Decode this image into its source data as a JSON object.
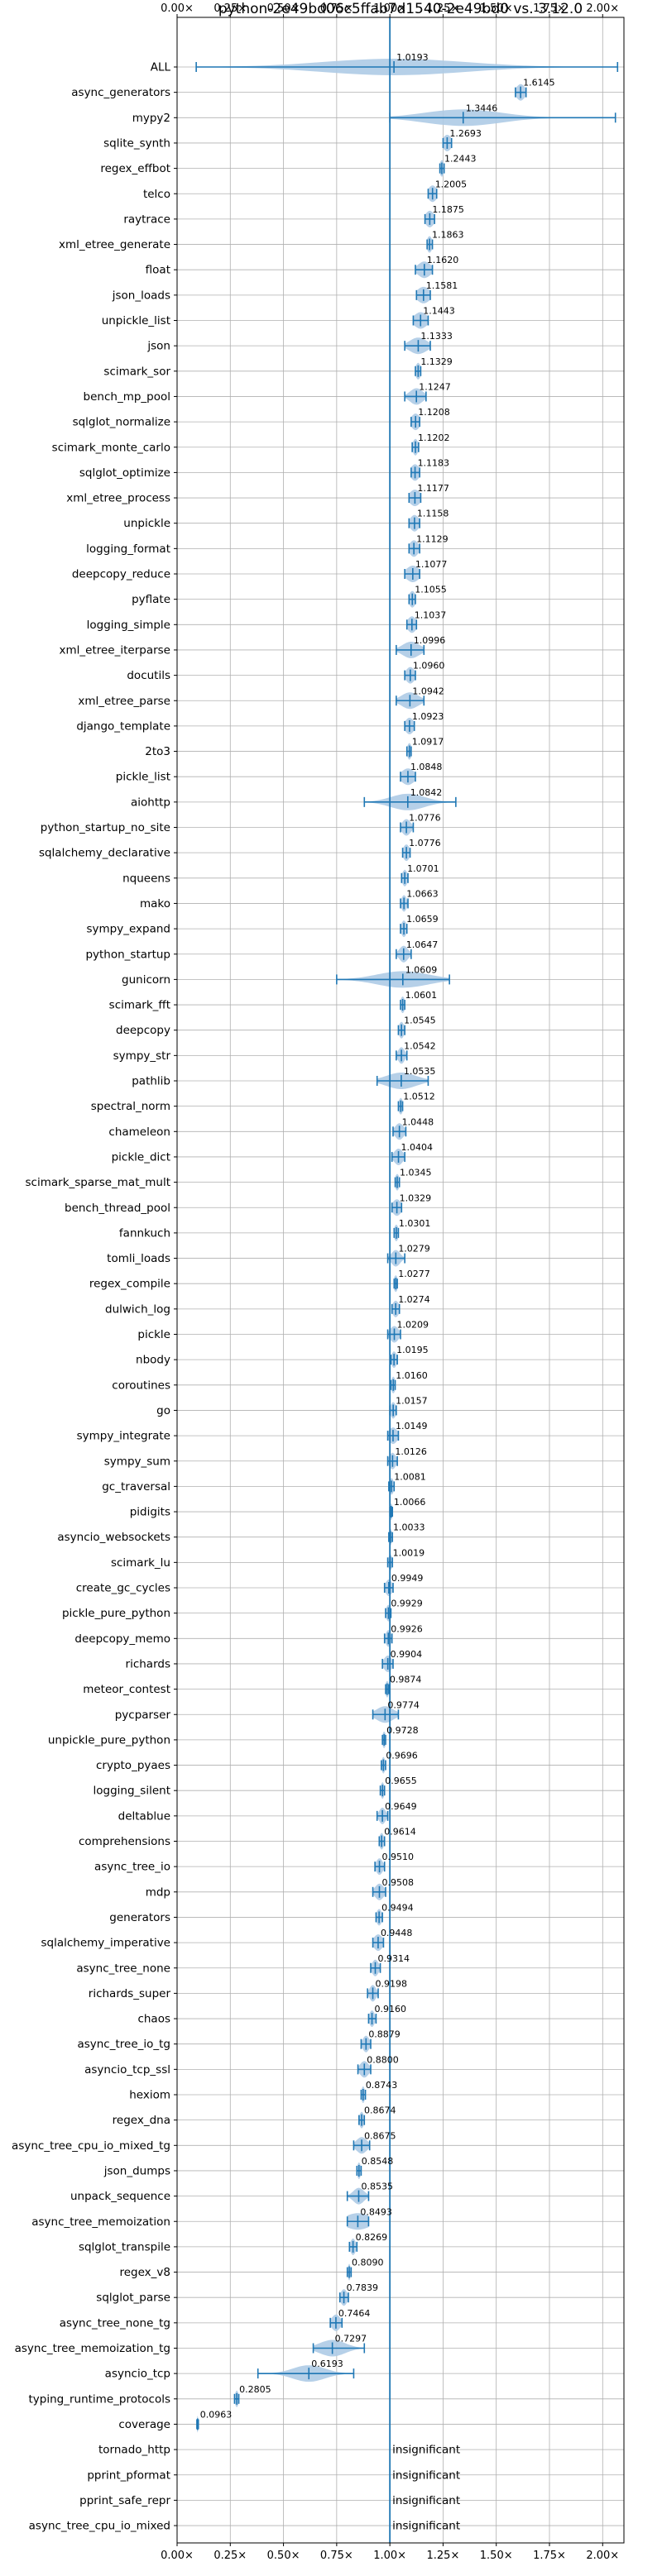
{
  "chart_data": {
    "type": "violin",
    "title": "python-2e49bd06c5ffab7d1540-2e49bd0 vs. 3.12.0",
    "xlabel": "",
    "ylabel": "",
    "xlim": [
      0.0,
      2.1
    ],
    "x_ticks": [
      0.0,
      0.25,
      0.5,
      0.75,
      1.0,
      1.25,
      1.5,
      1.75,
      2.0
    ],
    "x_tick_labels": [
      "0.00×",
      "0.25×",
      "0.50×",
      "0.75×",
      "1.00×",
      "1.25×",
      "1.50×",
      "1.75×",
      "2.00×"
    ],
    "grid": true,
    "reference_line": 1.0,
    "colors": {
      "violin_fill": "#aecbe6",
      "stroke": "#1f77b4",
      "grid": "#b0b0b0"
    },
    "insignificant_label": "insignificant",
    "benchmarks": [
      {
        "name": "ALL",
        "value": 1.0193,
        "label": "1.0193",
        "min": 0.09,
        "max": 2.07,
        "spread": 0.05
      },
      {
        "name": "async_generators",
        "value": 1.6145,
        "label": "1.6145",
        "min": 1.59,
        "max": 1.64,
        "spread": 0.02
      },
      {
        "name": "mypy2",
        "value": 1.3446,
        "label": "1.3446",
        "min": 1.0,
        "max": 2.06,
        "spread": 0.1
      },
      {
        "name": "sqlite_synth",
        "value": 1.2693,
        "label": "1.2693",
        "min": 1.25,
        "max": 1.29,
        "spread": 0.02
      },
      {
        "name": "regex_effbot",
        "value": 1.2443,
        "label": "1.2443",
        "min": 1.235,
        "max": 1.255,
        "spread": 0.01
      },
      {
        "name": "telco",
        "value": 1.2005,
        "label": "1.2005",
        "min": 1.18,
        "max": 1.22,
        "spread": 0.02
      },
      {
        "name": "raytrace",
        "value": 1.1875,
        "label": "1.1875",
        "min": 1.165,
        "max": 1.21,
        "spread": 0.02
      },
      {
        "name": "xml_etree_generate",
        "value": 1.1863,
        "label": "1.1863",
        "min": 1.175,
        "max": 1.2,
        "spread": 0.012
      },
      {
        "name": "float",
        "value": 1.162,
        "label": "1.1620",
        "min": 1.12,
        "max": 1.2,
        "spread": 0.03
      },
      {
        "name": "json_loads",
        "value": 1.1581,
        "label": "1.1581",
        "min": 1.125,
        "max": 1.19,
        "spread": 0.03
      },
      {
        "name": "unpickle_list",
        "value": 1.1443,
        "label": "1.1443",
        "min": 1.11,
        "max": 1.18,
        "spread": 0.03
      },
      {
        "name": "json",
        "value": 1.1333,
        "label": "1.1333",
        "min": 1.07,
        "max": 1.19,
        "spread": 0.04
      },
      {
        "name": "scimark_sor",
        "value": 1.1329,
        "label": "1.1329",
        "min": 1.12,
        "max": 1.145,
        "spread": 0.012
      },
      {
        "name": "bench_mp_pool",
        "value": 1.1247,
        "label": "1.1247",
        "min": 1.07,
        "max": 1.17,
        "spread": 0.03
      },
      {
        "name": "sqlglot_normalize",
        "value": 1.1208,
        "label": "1.1208",
        "min": 1.1,
        "max": 1.14,
        "spread": 0.02
      },
      {
        "name": "scimark_monte_carlo",
        "value": 1.1202,
        "label": "1.1202",
        "min": 1.105,
        "max": 1.135,
        "spread": 0.012
      },
      {
        "name": "sqlglot_optimize",
        "value": 1.1183,
        "label": "1.1183",
        "min": 1.1,
        "max": 1.14,
        "spread": 0.02
      },
      {
        "name": "xml_etree_process",
        "value": 1.1177,
        "label": "1.1177",
        "min": 1.09,
        "max": 1.145,
        "spread": 0.025
      },
      {
        "name": "unpickle",
        "value": 1.1158,
        "label": "1.1158",
        "min": 1.09,
        "max": 1.14,
        "spread": 0.02
      },
      {
        "name": "logging_format",
        "value": 1.1129,
        "label": "1.1129",
        "min": 1.09,
        "max": 1.14,
        "spread": 0.02
      },
      {
        "name": "deepcopy_reduce",
        "value": 1.1077,
        "label": "1.1077",
        "min": 1.07,
        "max": 1.14,
        "spread": 0.03
      },
      {
        "name": "pyflate",
        "value": 1.1055,
        "label": "1.1055",
        "min": 1.09,
        "max": 1.12,
        "spread": 0.015
      },
      {
        "name": "logging_simple",
        "value": 1.1037,
        "label": "1.1037",
        "min": 1.08,
        "max": 1.125,
        "spread": 0.02
      },
      {
        "name": "xml_etree_iterparse",
        "value": 1.0996,
        "label": "1.0996",
        "min": 1.03,
        "max": 1.16,
        "spread": 0.04
      },
      {
        "name": "docutils",
        "value": 1.096,
        "label": "1.0960",
        "min": 1.07,
        "max": 1.12,
        "spread": 0.02
      },
      {
        "name": "xml_etree_parse",
        "value": 1.0942,
        "label": "1.0942",
        "min": 1.03,
        "max": 1.16,
        "spread": 0.04
      },
      {
        "name": "django_template",
        "value": 1.0923,
        "label": "1.0923",
        "min": 1.07,
        "max": 1.115,
        "spread": 0.02
      },
      {
        "name": "2to3",
        "value": 1.0917,
        "label": "1.0917",
        "min": 1.08,
        "max": 1.1,
        "spread": 0.01
      },
      {
        "name": "pickle_list",
        "value": 1.0848,
        "label": "1.0848",
        "min": 1.05,
        "max": 1.12,
        "spread": 0.03
      },
      {
        "name": "aiohttp",
        "value": 1.0842,
        "label": "1.0842",
        "min": 0.88,
        "max": 1.31,
        "spread": 0.08
      },
      {
        "name": "python_startup_no_site",
        "value": 1.0776,
        "label": "1.0776",
        "min": 1.05,
        "max": 1.11,
        "spread": 0.02
      },
      {
        "name": "sqlalchemy_declarative",
        "value": 1.0776,
        "label": "1.0776",
        "min": 1.06,
        "max": 1.095,
        "spread": 0.015
      },
      {
        "name": "nqueens",
        "value": 1.0701,
        "label": "1.0701",
        "min": 1.055,
        "max": 1.085,
        "spread": 0.012
      },
      {
        "name": "mako",
        "value": 1.0663,
        "label": "1.0663",
        "min": 1.05,
        "max": 1.085,
        "spread": 0.012
      },
      {
        "name": "sympy_expand",
        "value": 1.0659,
        "label": "1.0659",
        "min": 1.05,
        "max": 1.08,
        "spread": 0.012
      },
      {
        "name": "python_startup",
        "value": 1.0647,
        "label": "1.0647",
        "min": 1.03,
        "max": 1.1,
        "spread": 0.02
      },
      {
        "name": "gunicorn",
        "value": 1.0609,
        "label": "1.0609",
        "min": 0.75,
        "max": 1.28,
        "spread": 0.12
      },
      {
        "name": "scimark_fft",
        "value": 1.0601,
        "label": "1.0601",
        "min": 1.05,
        "max": 1.07,
        "spread": 0.01
      },
      {
        "name": "deepcopy",
        "value": 1.0545,
        "label": "1.0545",
        "min": 1.04,
        "max": 1.07,
        "spread": 0.012
      },
      {
        "name": "sympy_str",
        "value": 1.0542,
        "label": "1.0542",
        "min": 1.03,
        "max": 1.08,
        "spread": 0.015
      },
      {
        "name": "pathlib",
        "value": 1.0535,
        "label": "1.0535",
        "min": 0.94,
        "max": 1.18,
        "spread": 0.07
      },
      {
        "name": "spectral_norm",
        "value": 1.0512,
        "label": "1.0512",
        "min": 1.04,
        "max": 1.06,
        "spread": 0.01
      },
      {
        "name": "chameleon",
        "value": 1.0448,
        "label": "1.0448",
        "min": 1.015,
        "max": 1.075,
        "spread": 0.02
      },
      {
        "name": "pickle_dict",
        "value": 1.0404,
        "label": "1.0404",
        "min": 1.01,
        "max": 1.07,
        "spread": 0.02
      },
      {
        "name": "scimark_sparse_mat_mult",
        "value": 1.0345,
        "label": "1.0345",
        "min": 1.025,
        "max": 1.045,
        "spread": 0.01
      },
      {
        "name": "bench_thread_pool",
        "value": 1.0329,
        "label": "1.0329",
        "min": 1.01,
        "max": 1.055,
        "spread": 0.02
      },
      {
        "name": "fannkuch",
        "value": 1.0301,
        "label": "1.0301",
        "min": 1.02,
        "max": 1.04,
        "spread": 0.01
      },
      {
        "name": "tomli_loads",
        "value": 1.0279,
        "label": "1.0279",
        "min": 0.99,
        "max": 1.07,
        "spread": 0.02
      },
      {
        "name": "regex_compile",
        "value": 1.0277,
        "label": "1.0277",
        "min": 1.02,
        "max": 1.035,
        "spread": 0.01
      },
      {
        "name": "dulwich_log",
        "value": 1.0274,
        "label": "1.0274",
        "min": 1.01,
        "max": 1.045,
        "spread": 0.015
      },
      {
        "name": "pickle",
        "value": 1.0209,
        "label": "1.0209",
        "min": 0.99,
        "max": 1.05,
        "spread": 0.02
      },
      {
        "name": "nbody",
        "value": 1.0195,
        "label": "1.0195",
        "min": 1.005,
        "max": 1.035,
        "spread": 0.012
      },
      {
        "name": "coroutines",
        "value": 1.016,
        "label": "1.0160",
        "min": 1.005,
        "max": 1.025,
        "spread": 0.01
      },
      {
        "name": "go",
        "value": 1.0157,
        "label": "1.0157",
        "min": 1.0,
        "max": 1.03,
        "spread": 0.012
      },
      {
        "name": "sympy_integrate",
        "value": 1.0149,
        "label": "1.0149",
        "min": 0.99,
        "max": 1.04,
        "spread": 0.02
      },
      {
        "name": "sympy_sum",
        "value": 1.0126,
        "label": "1.0126",
        "min": 0.99,
        "max": 1.035,
        "spread": 0.015
      },
      {
        "name": "gc_traversal",
        "value": 1.0081,
        "label": "1.0081",
        "min": 0.995,
        "max": 1.02,
        "spread": 0.01
      },
      {
        "name": "pidigits",
        "value": 1.0066,
        "label": "1.0066",
        "min": 1.0,
        "max": 1.012,
        "spread": 0.006
      },
      {
        "name": "asyncio_websockets",
        "value": 1.0033,
        "label": "1.0033",
        "min": 0.995,
        "max": 1.012,
        "spread": 0.006
      },
      {
        "name": "scimark_lu",
        "value": 1.0019,
        "label": "1.0019",
        "min": 0.99,
        "max": 1.012,
        "spread": 0.008
      },
      {
        "name": "create_gc_cycles",
        "value": 0.9949,
        "label": "0.9949",
        "min": 0.975,
        "max": 1.015,
        "spread": 0.015
      },
      {
        "name": "pickle_pure_python",
        "value": 0.9929,
        "label": "0.9929",
        "min": 0.98,
        "max": 1.005,
        "spread": 0.01
      },
      {
        "name": "deepcopy_memo",
        "value": 0.9926,
        "label": "0.9926",
        "min": 0.975,
        "max": 1.01,
        "spread": 0.012
      },
      {
        "name": "richards",
        "value": 0.9904,
        "label": "0.9904",
        "min": 0.965,
        "max": 1.015,
        "spread": 0.018
      },
      {
        "name": "meteor_contest",
        "value": 0.9874,
        "label": "0.9874",
        "min": 0.98,
        "max": 0.995,
        "spread": 0.008
      },
      {
        "name": "pycparser",
        "value": 0.9774,
        "label": "0.9774",
        "min": 0.92,
        "max": 1.04,
        "spread": 0.04
      },
      {
        "name": "unpickle_pure_python",
        "value": 0.9728,
        "label": "0.9728",
        "min": 0.965,
        "max": 0.98,
        "spread": 0.008
      },
      {
        "name": "crypto_pyaes",
        "value": 0.9696,
        "label": "0.9696",
        "min": 0.96,
        "max": 0.98,
        "spread": 0.008
      },
      {
        "name": "logging_silent",
        "value": 0.9655,
        "label": "0.9655",
        "min": 0.955,
        "max": 0.975,
        "spread": 0.008
      },
      {
        "name": "deltablue",
        "value": 0.9649,
        "label": "0.9649",
        "min": 0.94,
        "max": 0.99,
        "spread": 0.015
      },
      {
        "name": "comprehensions",
        "value": 0.9614,
        "label": "0.9614",
        "min": 0.95,
        "max": 0.975,
        "spread": 0.01
      },
      {
        "name": "async_tree_io",
        "value": 0.951,
        "label": "0.9510",
        "min": 0.93,
        "max": 0.975,
        "spread": 0.015
      },
      {
        "name": "mdp",
        "value": 0.9508,
        "label": "0.9508",
        "min": 0.92,
        "max": 0.98,
        "spread": 0.02
      },
      {
        "name": "generators",
        "value": 0.9494,
        "label": "0.9494",
        "min": 0.935,
        "max": 0.965,
        "spread": 0.012
      },
      {
        "name": "sqlalchemy_imperative",
        "value": 0.9448,
        "label": "0.9448",
        "min": 0.92,
        "max": 0.97,
        "spread": 0.02
      },
      {
        "name": "async_tree_none",
        "value": 0.9314,
        "label": "0.9314",
        "min": 0.91,
        "max": 0.955,
        "spread": 0.015
      },
      {
        "name": "richards_super",
        "value": 0.9198,
        "label": "0.9198",
        "min": 0.895,
        "max": 0.945,
        "spread": 0.015
      },
      {
        "name": "chaos",
        "value": 0.916,
        "label": "0.9160",
        "min": 0.9,
        "max": 0.935,
        "spread": 0.012
      },
      {
        "name": "async_tree_io_tg",
        "value": 0.8879,
        "label": "0.8879",
        "min": 0.865,
        "max": 0.91,
        "spread": 0.015
      },
      {
        "name": "asyncio_tcp_ssl",
        "value": 0.88,
        "label": "0.8800",
        "min": 0.85,
        "max": 0.91,
        "spread": 0.02
      },
      {
        "name": "hexiom",
        "value": 0.8743,
        "label": "0.8743",
        "min": 0.865,
        "max": 0.885,
        "spread": 0.008
      },
      {
        "name": "regex_dna",
        "value": 0.8674,
        "label": "0.8674",
        "min": 0.855,
        "max": 0.88,
        "spread": 0.01
      },
      {
        "name": "async_tree_cpu_io_mixed_tg",
        "value": 0.8675,
        "label": "0.8675",
        "min": 0.83,
        "max": 0.905,
        "spread": 0.025
      },
      {
        "name": "json_dumps",
        "value": 0.8548,
        "label": "0.8548",
        "min": 0.845,
        "max": 0.865,
        "spread": 0.008
      },
      {
        "name": "unpack_sequence",
        "value": 0.8535,
        "label": "0.8535",
        "min": 0.8,
        "max": 0.9,
        "spread": 0.025
      },
      {
        "name": "async_tree_memoization",
        "value": 0.8493,
        "label": "0.8493",
        "min": 0.8,
        "max": 0.9,
        "spread": 0.06
      },
      {
        "name": "sqlglot_transpile",
        "value": 0.8269,
        "label": "0.8269",
        "min": 0.81,
        "max": 0.845,
        "spread": 0.012
      },
      {
        "name": "regex_v8",
        "value": 0.809,
        "label": "0.8090",
        "min": 0.8,
        "max": 0.818,
        "spread": 0.006
      },
      {
        "name": "sqlglot_parse",
        "value": 0.7839,
        "label": "0.7839",
        "min": 0.765,
        "max": 0.805,
        "spread": 0.015
      },
      {
        "name": "async_tree_none_tg",
        "value": 0.7464,
        "label": "0.7464",
        "min": 0.72,
        "max": 0.775,
        "spread": 0.02
      },
      {
        "name": "async_tree_memoization_tg",
        "value": 0.7297,
        "label": "0.7297",
        "min": 0.64,
        "max": 0.88,
        "spread": 0.06
      },
      {
        "name": "asyncio_tcp",
        "value": 0.6193,
        "label": "0.6193",
        "min": 0.38,
        "max": 0.83,
        "spread": 0.06
      },
      {
        "name": "typing_runtime_protocols",
        "value": 0.2805,
        "label": "0.2805",
        "min": 0.27,
        "max": 0.29,
        "spread": 0.008
      },
      {
        "name": "coverage",
        "value": 0.0963,
        "label": "0.0963",
        "min": 0.093,
        "max": 0.1,
        "spread": 0.003
      },
      {
        "name": "tornado_http",
        "insignificant": true
      },
      {
        "name": "pprint_pformat",
        "insignificant": true
      },
      {
        "name": "pprint_safe_repr",
        "insignificant": true
      },
      {
        "name": "async_tree_cpu_io_mixed",
        "insignificant": true
      }
    ]
  }
}
